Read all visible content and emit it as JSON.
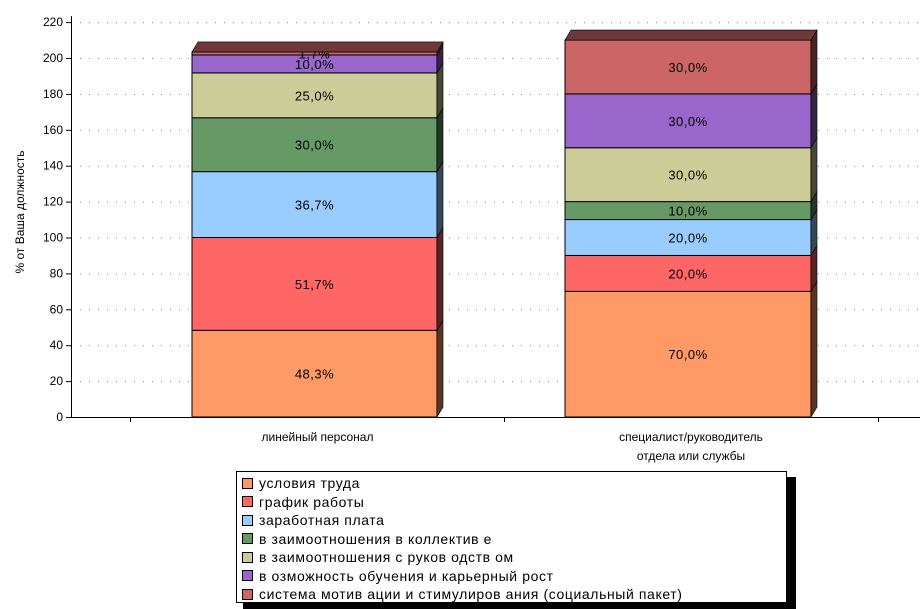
{
  "chart_data": {
    "type": "bar",
    "stacked": true,
    "ylabel": "% от Ваша должность",
    "ylim": [
      0,
      220
    ],
    "yticks": [
      0,
      20,
      40,
      60,
      80,
      100,
      120,
      140,
      160,
      180,
      200,
      220
    ],
    "categories": [
      [
        "линейный персонал"
      ],
      [
        "специалист/руководитель",
        "отдела или службы"
      ]
    ],
    "series": [
      {
        "name": "условия труда",
        "color": "#FF9966",
        "values": [
          48.3,
          70.0
        ],
        "labels": [
          "48,3%",
          "70,0%"
        ]
      },
      {
        "name": "график работы",
        "color": "#FF6666",
        "values": [
          51.7,
          20.0
        ],
        "labels": [
          "51,7%",
          "20,0%"
        ]
      },
      {
        "name": "заработная плата",
        "color": "#99CCFF",
        "values": [
          36.7,
          20.0
        ],
        "labels": [
          "36,7%",
          "20,0%"
        ]
      },
      {
        "name": "в заимоотношения в коллектив е",
        "color": "#669966",
        "values": [
          30.0,
          10.0
        ],
        "labels": [
          "30,0%",
          "10,0%"
        ]
      },
      {
        "name": "в заимоотношения с руков одств ом",
        "color": "#CCCC99",
        "values": [
          25.0,
          30.0
        ],
        "labels": [
          "25,0%",
          "30,0%"
        ]
      },
      {
        "name": "в озможность обучения и карьерный рост",
        "color": "#9966CC",
        "values": [
          10.0,
          30.0
        ],
        "labels": [
          "10,0%",
          "30,0%"
        ]
      },
      {
        "name": "система мотив ации и стимулиров ания (социальный пакет)",
        "color": "#CC6666",
        "values": [
          1.7,
          30.0
        ],
        "labels": [
          "1,7%",
          "30,0%"
        ]
      }
    ],
    "grid": true,
    "legend": "bottom"
  }
}
